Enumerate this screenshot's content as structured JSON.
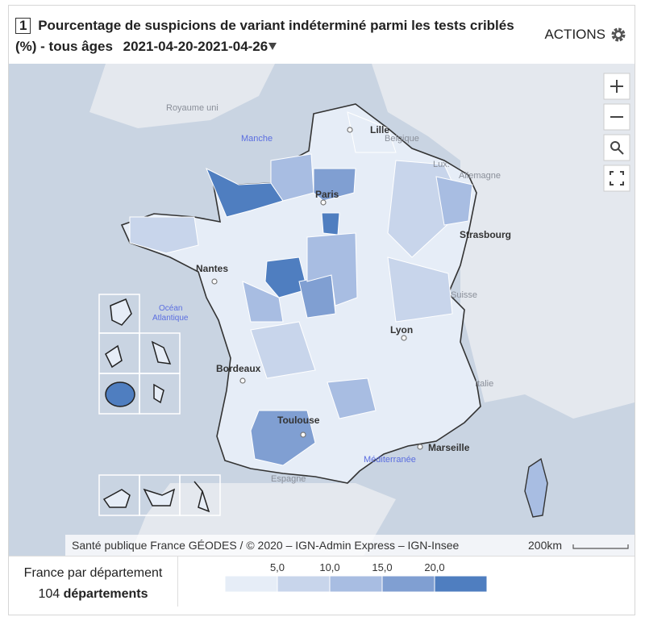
{
  "header": {
    "number": "1",
    "title": "Pourcentage de suspicions de variant indéterminé parmi les tests criblés (%) - tous âges",
    "period": "2021-04-20-2021-04-26",
    "actions": "ACTIONS"
  },
  "map": {
    "labels": {
      "royaume_uni": "Royaume uni",
      "manche": "Manche",
      "lille": "Lille",
      "belgique": "Belgique",
      "lux": "Lux.",
      "allemagne": "Allemagne",
      "paris": "Paris",
      "strasbourg": "Strasbourg",
      "nantes": "Nantes",
      "ocean": "Océan",
      "atlantique": "Atlantique",
      "suisse": "Suisse",
      "lyon": "Lyon",
      "bordeaux": "Bordeaux",
      "italie": "Italie",
      "toulouse": "Toulouse",
      "marseille": "Marseille",
      "mediterranee": "Méditerranée",
      "espagne": "Espagne"
    },
    "attribution": "Santé publique France GÉODES / © 2020 – IGN-Admin Express – IGN-Insee",
    "scale": "200km"
  },
  "legend": {
    "scope": "France par département",
    "count": "104",
    "unit": "départements",
    "ticks": [
      "5,0",
      "10,0",
      "15,0",
      "20,0"
    ],
    "colors": [
      "#e6edf7",
      "#c8d5eb",
      "#a8bde2",
      "#809fd2",
      "#4f7ec0"
    ]
  }
}
